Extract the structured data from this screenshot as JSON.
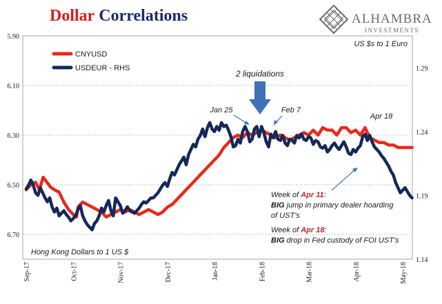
{
  "header": {
    "title_part1": "Dollar",
    "title_part2": "Correlations",
    "title_color1": "#e01b1b",
    "title_color2": "#1f2a6b",
    "logo_name": "ALHAMBRA",
    "logo_sub": "INVESTMENTS",
    "logo_icon": "alhambra-lattice-diamond-icon"
  },
  "chart_data": {
    "type": "line",
    "x": [
      "Sep-17",
      "Oct-17",
      "Nov-17",
      "Dec-17",
      "Jan-18",
      "Feb-18",
      "Mar-18",
      "Apr-18",
      "May-18"
    ],
    "left_axis": {
      "ticks": [
        "5.90",
        "6.10",
        "6.30",
        "6.50",
        "6.70"
      ],
      "values": [
        5.9,
        6.1,
        6.3,
        6.5,
        6.7
      ],
      "inverted": true,
      "range": [
        5.9,
        6.8
      ],
      "note": "Hong Kong Dollars to 1 US $"
    },
    "right_axis": {
      "ticks": [
        "1.29",
        "1.24",
        "1.19",
        "1.14"
      ],
      "values": [
        1.29,
        1.24,
        1.19,
        1.14
      ],
      "range": [
        1.14,
        1.315
      ],
      "note": "US $s to 1 Euro"
    },
    "grid": true,
    "legend_position": "top-left",
    "series": [
      {
        "name": "CNYUSD",
        "axis": "left",
        "color": "#e8291c",
        "x": [
          0.0,
          0.1,
          0.2,
          0.28,
          0.36,
          0.44,
          0.52,
          0.6,
          0.7,
          0.8,
          0.9,
          1.0,
          1.07,
          1.1,
          1.2,
          1.3,
          1.4,
          1.5,
          1.6,
          1.7,
          1.8,
          1.9,
          2.0,
          2.1,
          2.2,
          2.3,
          2.4,
          2.5,
          2.6,
          2.7,
          2.8,
          2.9,
          3.0,
          3.1,
          3.2,
          3.3,
          3.4,
          3.5,
          3.6,
          3.7,
          3.8,
          3.9,
          4.0,
          4.1,
          4.2,
          4.3,
          4.4,
          4.5,
          4.6,
          4.7,
          4.8,
          4.9,
          5.0,
          5.1,
          5.2,
          5.3,
          5.4,
          5.5,
          5.6,
          5.7,
          5.8,
          5.9,
          6.0,
          6.1,
          6.2,
          6.3,
          6.4,
          6.5,
          6.6,
          6.7,
          6.8,
          6.9,
          7.0,
          7.1,
          7.2,
          7.3,
          7.4,
          7.5,
          7.6,
          7.7,
          7.8,
          7.9,
          8.0,
          8.1,
          8.2
        ],
        "values": [
          6.52,
          6.5,
          6.49,
          6.52,
          6.47,
          6.49,
          6.51,
          6.52,
          6.53,
          6.57,
          6.6,
          6.62,
          6.63,
          6.59,
          6.57,
          6.58,
          6.59,
          6.6,
          6.61,
          6.63,
          6.62,
          6.61,
          6.6,
          6.61,
          6.6,
          6.61,
          6.62,
          6.61,
          6.6,
          6.61,
          6.62,
          6.61,
          6.59,
          6.58,
          6.56,
          6.54,
          6.52,
          6.5,
          6.48,
          6.46,
          6.44,
          6.42,
          6.4,
          6.38,
          6.35,
          6.33,
          6.31,
          6.3,
          6.31,
          6.29,
          6.3,
          6.29,
          6.28,
          6.29,
          6.3,
          6.31,
          6.3,
          6.31,
          6.32,
          6.31,
          6.3,
          6.29,
          6.3,
          6.28,
          6.3,
          6.27,
          6.28,
          6.28,
          6.3,
          6.27,
          6.27,
          6.29,
          6.28,
          6.3,
          6.27,
          6.31,
          6.32,
          6.33,
          6.33,
          6.34,
          6.34,
          6.35,
          6.35,
          6.35,
          6.35
        ]
      },
      {
        "name": "USDEUR - RHS",
        "axis": "right",
        "color": "#14285a",
        "x": [
          0.0,
          0.05,
          0.1,
          0.15,
          0.2,
          0.25,
          0.3,
          0.35,
          0.4,
          0.45,
          0.5,
          0.55,
          0.6,
          0.65,
          0.7,
          0.75,
          0.8,
          0.85,
          0.9,
          0.95,
          1.0,
          1.05,
          1.1,
          1.15,
          1.2,
          1.25,
          1.3,
          1.35,
          1.4,
          1.45,
          1.5,
          1.55,
          1.6,
          1.65,
          1.7,
          1.75,
          1.8,
          1.85,
          1.9,
          1.95,
          2.0,
          2.05,
          2.1,
          2.15,
          2.2,
          2.25,
          2.3,
          2.35,
          2.4,
          2.45,
          2.5,
          2.55,
          2.6,
          2.65,
          2.7,
          2.75,
          2.8,
          2.85,
          2.9,
          2.95,
          3.0,
          3.05,
          3.1,
          3.15,
          3.2,
          3.25,
          3.3,
          3.35,
          3.4,
          3.45,
          3.5,
          3.55,
          3.6,
          3.65,
          3.7,
          3.75,
          3.8,
          3.85,
          3.9,
          3.95,
          4.0,
          4.05,
          4.1,
          4.15,
          4.2,
          4.25,
          4.3,
          4.35,
          4.4,
          4.45,
          4.5,
          4.55,
          4.6,
          4.65,
          4.7,
          4.75,
          4.8,
          4.85,
          4.9,
          4.95,
          5.0,
          5.05,
          5.1,
          5.15,
          5.2,
          5.25,
          5.3,
          5.35,
          5.4,
          5.45,
          5.5,
          5.55,
          5.6,
          5.65,
          5.7,
          5.75,
          5.8,
          5.85,
          5.9,
          5.95,
          6.0,
          6.05,
          6.1,
          6.15,
          6.2,
          6.25,
          6.3,
          6.35,
          6.4,
          6.45,
          6.5,
          6.55,
          6.6,
          6.65,
          6.7,
          6.75,
          6.8,
          6.85,
          6.9,
          6.95,
          7.0,
          7.05,
          7.1,
          7.15,
          7.2,
          7.25,
          7.3,
          7.35,
          7.4,
          7.45,
          7.5,
          7.55,
          7.6,
          7.65,
          7.7,
          7.75,
          7.8,
          7.85,
          7.9,
          7.95,
          8.0,
          8.05,
          8.1,
          8.15,
          8.2
        ],
        "values": [
          1.195,
          1.198,
          1.202,
          1.198,
          1.192,
          1.19,
          1.196,
          1.192,
          1.188,
          1.185,
          1.188,
          1.181,
          1.177,
          1.18,
          1.174,
          1.176,
          1.178,
          1.175,
          1.173,
          1.17,
          1.172,
          1.174,
          1.179,
          1.182,
          1.174,
          1.17,
          1.167,
          1.165,
          1.163,
          1.168,
          1.17,
          1.174,
          1.18,
          1.177,
          1.182,
          1.186,
          1.178,
          1.174,
          1.188,
          1.185,
          1.182,
          1.176,
          1.178,
          1.181,
          1.178,
          1.177,
          1.176,
          1.178,
          1.18,
          1.183,
          1.185,
          1.184,
          1.186,
          1.188,
          1.188,
          1.19,
          1.192,
          1.195,
          1.198,
          1.2,
          1.197,
          1.203,
          1.208,
          1.206,
          1.21,
          1.214,
          1.217,
          1.22,
          1.214,
          1.222,
          1.226,
          1.23,
          1.228,
          1.234,
          1.237,
          1.242,
          1.236,
          1.243,
          1.247,
          1.242,
          1.24,
          1.244,
          1.241,
          1.247,
          1.244,
          1.245,
          1.241,
          1.236,
          1.228,
          1.229,
          1.234,
          1.231,
          1.24,
          1.244,
          1.24,
          1.232,
          1.234,
          1.242,
          1.244,
          1.236,
          1.244,
          1.239,
          1.232,
          1.228,
          1.238,
          1.235,
          1.24,
          1.234,
          1.233,
          1.237,
          1.231,
          1.229,
          1.234,
          1.233,
          1.231,
          1.237,
          1.235,
          1.238,
          1.234,
          1.233,
          1.236,
          1.235,
          1.23,
          1.233,
          1.232,
          1.228,
          1.227,
          1.229,
          1.224,
          1.226,
          1.229,
          1.231,
          1.228,
          1.226,
          1.229,
          1.232,
          1.228,
          1.223,
          1.222,
          1.226,
          1.224,
          1.227,
          1.229,
          1.236,
          1.238,
          1.233,
          1.237,
          1.232,
          1.228,
          1.226,
          1.224,
          1.221,
          1.219,
          1.216,
          1.213,
          1.209,
          1.206,
          1.2,
          1.196,
          1.192,
          1.194,
          1.196,
          1.193,
          1.19,
          1.188
        ]
      }
    ],
    "annotations": {
      "liquidations": "2 liquidations",
      "jan25": "Jan 25",
      "feb7": "Feb 7",
      "apr18": "Apr 18",
      "note1_line1_pre": "Week of ",
      "note1_line1_em": "Apr 11",
      "note1_line1_post": ":",
      "note1_line2_b": "BIG",
      "note1_line2_rest": " jump in primary dealer hoarding",
      "note1_line3": "of UST's",
      "note2_line1_pre": "Week of ",
      "note2_line1_em": "Apr 18",
      "note2_line1_post": ":",
      "note2_line2_b": "BIG",
      "note2_line2_rest": " drop in Fed custody of FOI UST's"
    },
    "colors": {
      "arrow_blue": "#3f72b8",
      "annotation_red": "#c0262d",
      "grid": "#bfbfbf"
    }
  }
}
